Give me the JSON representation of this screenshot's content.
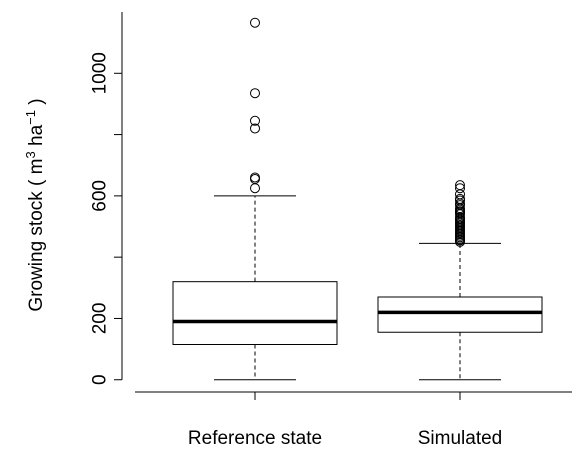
{
  "chart_data": {
    "type": "boxplot",
    "title": "",
    "xlabel": "",
    "ylabel": {
      "text": "Growing stock",
      "paren_open": "(",
      "unit_m": "m",
      "unit_m_exp": "3",
      "unit_ha": "ha",
      "unit_ha_exp": "−1",
      "paren_close": ")"
    },
    "ylim": [
      -40,
      1200
    ],
    "yticks": [
      0,
      200,
      600,
      1000
    ],
    "ytick_labels": [
      "0",
      "200",
      "600",
      "1000"
    ],
    "grid": false,
    "series": [
      {
        "name": "Reference state",
        "whisker_low": 0,
        "q1": 115,
        "median": 190,
        "q3": 320,
        "whisker_high": 600,
        "outliers": [
          625,
          655,
          660,
          820,
          845,
          935,
          1165
        ]
      },
      {
        "name": "Simulated",
        "whisker_low": 0,
        "q1": 155,
        "median": 220,
        "q3": 270,
        "whisker_high": 445,
        "outliers": [
          450,
          455,
          460,
          465,
          470,
          475,
          480,
          485,
          490,
          495,
          500,
          505,
          510,
          515,
          520,
          525,
          530,
          540,
          545,
          550,
          555,
          560,
          570,
          575,
          585,
          590,
          605,
          625,
          635
        ]
      }
    ]
  }
}
